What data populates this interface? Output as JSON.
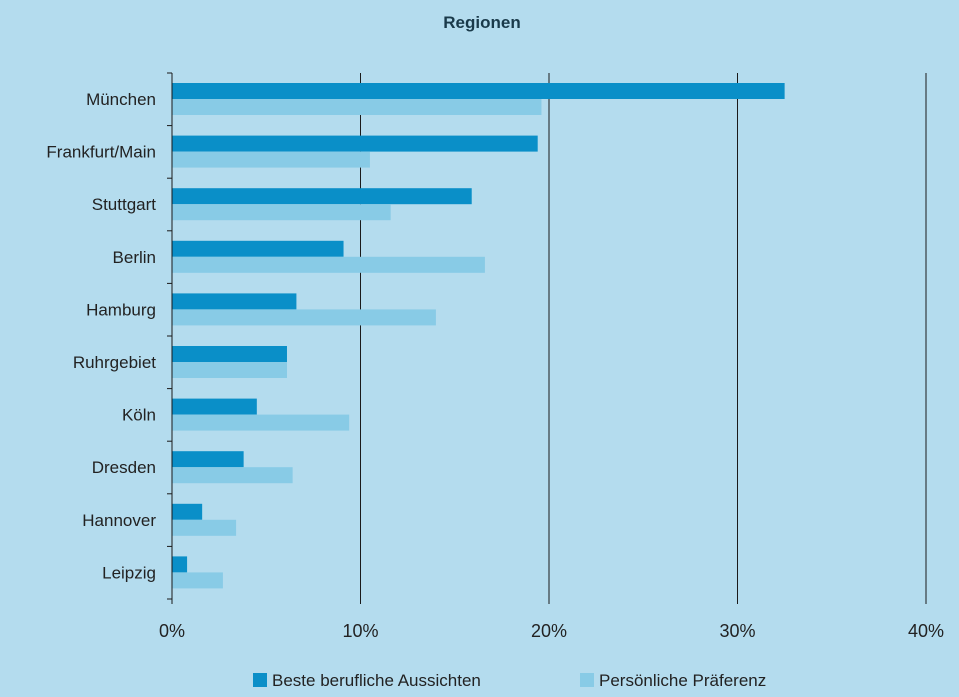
{
  "colors": {
    "background": "#b4dcee",
    "series_primary": "#0a8fc8",
    "series_secondary": "#88cbe6",
    "grid": "#1a1a1a",
    "text": "#222222",
    "title": "#1a3a4a"
  },
  "chart_data": {
    "type": "bar",
    "orientation": "horizontal",
    "title": "Regionen",
    "xlabel": "",
    "ylabel": "",
    "categories": [
      "München",
      "Frankfurt/Main",
      "Stuttgart",
      "Berlin",
      "Hamburg",
      "Ruhrgebiet",
      "Köln",
      "Dresden",
      "Hannover",
      "Leipzig"
    ],
    "series": [
      {
        "name": "Beste berufliche Aussichten",
        "values": [
          32.5,
          19.4,
          15.9,
          9.1,
          6.6,
          6.1,
          4.5,
          3.8,
          1.6,
          0.8
        ]
      },
      {
        "name": "Persönliche Präferenz",
        "values": [
          19.6,
          10.5,
          11.6,
          16.6,
          14.0,
          6.1,
          9.4,
          6.4,
          3.4,
          2.7
        ]
      }
    ],
    "xlim": [
      0,
      40
    ],
    "xticks": [
      0,
      10,
      20,
      30,
      40
    ],
    "xtick_labels": [
      "0%",
      "10%",
      "20%",
      "30%",
      "40%"
    ],
    "grid": true,
    "legend_position": "bottom"
  }
}
